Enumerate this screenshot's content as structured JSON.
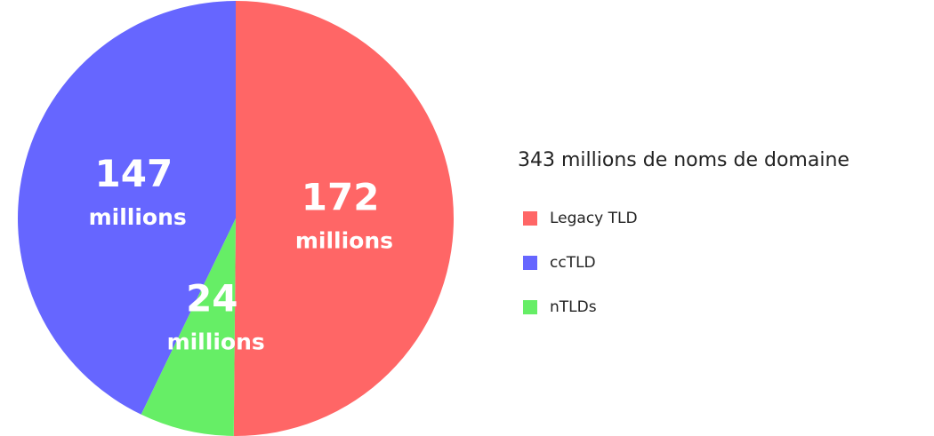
{
  "chart_data": {
    "type": "pie",
    "legend_title": "343 millions de noms de domaine",
    "categories": [
      "Legacy TLD",
      "ccTLD",
      "nTLDs"
    ],
    "values": [
      172,
      147,
      24
    ],
    "value_labels": [
      "172 millions",
      "147 millions",
      "24 millions"
    ],
    "colors": [
      "#ff6666",
      "#6666ff",
      "#66ee66"
    ]
  }
}
